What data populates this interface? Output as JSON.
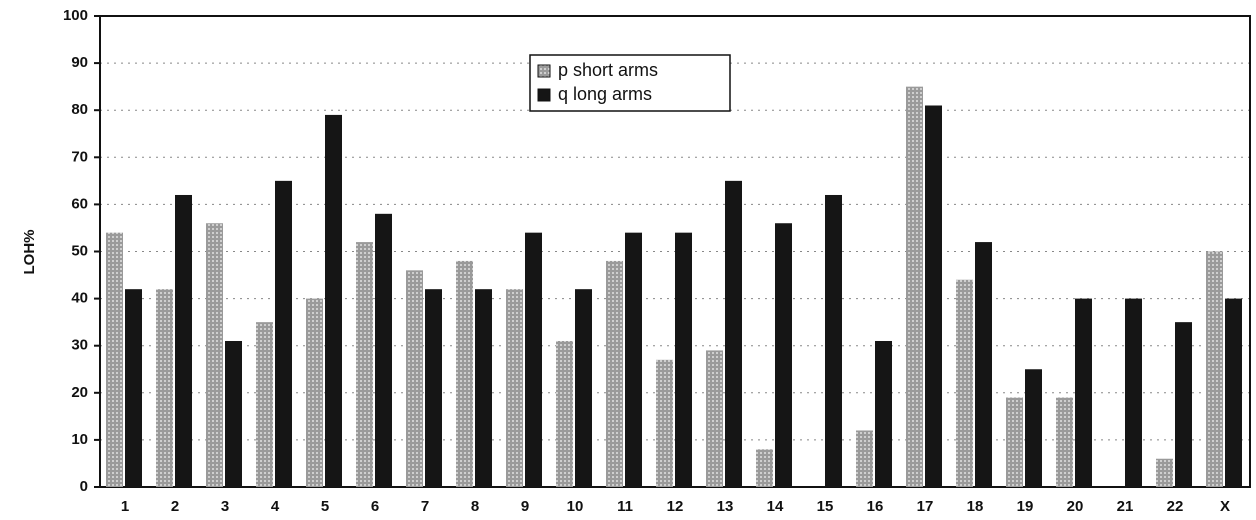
{
  "chart_data": {
    "type": "bar",
    "y_label": "LOH%",
    "categories": [
      "1",
      "2",
      "3",
      "4",
      "5",
      "6",
      "7",
      "8",
      "9",
      "10",
      "11",
      "12",
      "13",
      "14",
      "15",
      "16",
      "17",
      "18",
      "19",
      "20",
      "21",
      "22",
      "X"
    ],
    "series": [
      {
        "name": "p short arms",
        "color": "#9a9a9a",
        "values": [
          54,
          42,
          56,
          35,
          40,
          52,
          46,
          48,
          42,
          31,
          48,
          27,
          29,
          8,
          0,
          12,
          85,
          44,
          19,
          19,
          0,
          6,
          50
        ]
      },
      {
        "name": "q long arms",
        "color": "#151515",
        "values": [
          42,
          62,
          31,
          65,
          79,
          58,
          42,
          42,
          54,
          42,
          54,
          54,
          65,
          56,
          62,
          31,
          81,
          52,
          25,
          40,
          40,
          35,
          40
        ]
      }
    ],
    "ylim": [
      0,
      100
    ],
    "yticks": [
      0,
      10,
      20,
      30,
      40,
      50,
      60,
      70,
      80,
      90,
      100
    ],
    "grid": true
  }
}
